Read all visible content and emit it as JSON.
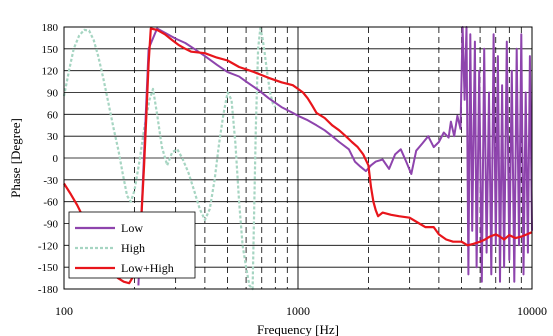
{
  "chart_data": {
    "type": "line",
    "xscale": "log",
    "xlim": [
      100,
      10000
    ],
    "ylim": [
      -180,
      180
    ],
    "xlabel": "Frequency [Hz]",
    "ylabel": "Phase [Degree]",
    "xticks": [
      100,
      1000,
      10000
    ],
    "xtick_labels": [
      "100",
      "1000",
      "10000"
    ],
    "yticks": [
      180,
      150,
      120,
      90,
      60,
      30,
      0,
      -30,
      -60,
      -90,
      -120,
      -150,
      -180
    ],
    "ytick_labels": [
      "180",
      "150",
      "120",
      "90",
      "60",
      "30",
      "0",
      "-30",
      "-60",
      "-90",
      "-120",
      "-150",
      "-180"
    ],
    "grid": true,
    "legend_position": "bottom-left",
    "series": [
      {
        "name": "Low",
        "color": "#8e44ad",
        "points": [
          [
            208,
            -175
          ],
          [
            230,
            150
          ],
          [
            250,
            178
          ],
          [
            270,
            172
          ],
          [
            300,
            164
          ],
          [
            330,
            158
          ],
          [
            360,
            150
          ],
          [
            400,
            140
          ],
          [
            450,
            128
          ],
          [
            500,
            118
          ],
          [
            560,
            112
          ],
          [
            600,
            105
          ],
          [
            680,
            93
          ],
          [
            750,
            82
          ],
          [
            850,
            70
          ],
          [
            950,
            62
          ],
          [
            1000,
            58
          ],
          [
            1100,
            52
          ],
          [
            1200,
            45
          ],
          [
            1300,
            38
          ],
          [
            1400,
            30
          ],
          [
            1500,
            22
          ],
          [
            1650,
            12
          ],
          [
            1750,
            -5
          ],
          [
            1850,
            -12
          ],
          [
            1950,
            -18
          ],
          [
            2050,
            -10
          ],
          [
            2150,
            -5
          ],
          [
            2300,
            -2
          ],
          [
            2450,
            -15
          ],
          [
            2600,
            5
          ],
          [
            2750,
            12
          ],
          [
            2900,
            -5
          ],
          [
            3050,
            -22
          ],
          [
            3200,
            10
          ],
          [
            3400,
            20
          ],
          [
            3600,
            30
          ],
          [
            3800,
            15
          ],
          [
            4000,
            22
          ],
          [
            4200,
            35
          ],
          [
            4400,
            28
          ],
          [
            4500,
            50
          ],
          [
            4650,
            30
          ],
          [
            4800,
            58
          ],
          [
            4950,
            40
          ],
          [
            5050,
            180
          ],
          [
            5150,
            80
          ],
          [
            5250,
            180
          ],
          [
            5350,
            -160
          ],
          [
            5450,
            170
          ],
          [
            5550,
            -100
          ],
          [
            5700,
            160
          ],
          [
            5800,
            -150
          ],
          [
            5950,
            120
          ],
          [
            6100,
            -170
          ],
          [
            6250,
            150
          ],
          [
            6400,
            -130
          ],
          [
            6550,
            90
          ],
          [
            6700,
            -160
          ],
          [
            6850,
            170
          ],
          [
            7000,
            -120
          ],
          [
            7150,
            140
          ],
          [
            7300,
            -170
          ],
          [
            7450,
            100
          ],
          [
            7600,
            -150
          ],
          [
            7800,
            160
          ],
          [
            8000,
            -140
          ],
          [
            8200,
            120
          ],
          [
            8400,
            -170
          ],
          [
            8600,
            150
          ],
          [
            8800,
            -120
          ],
          [
            9000,
            170
          ],
          [
            9200,
            -160
          ],
          [
            9400,
            90
          ],
          [
            9600,
            -130
          ],
          [
            9800,
            140
          ],
          [
            10000,
            -100
          ]
        ]
      },
      {
        "name": "High",
        "color": "#a6d5c2",
        "points": [
          [
            100,
            85
          ],
          [
            105,
            120
          ],
          [
            110,
            150
          ],
          [
            116,
            168
          ],
          [
            122,
            176
          ],
          [
            128,
            175
          ],
          [
            134,
            162
          ],
          [
            140,
            140
          ],
          [
            147,
            110
          ],
          [
            155,
            75
          ],
          [
            163,
            40
          ],
          [
            171,
            10
          ],
          [
            179,
            -25
          ],
          [
            186,
            -52
          ],
          [
            193,
            -60
          ],
          [
            200,
            -45
          ],
          [
            210,
            -5
          ],
          [
            220,
            40
          ],
          [
            232,
            80
          ],
          [
            240,
            95
          ],
          [
            250,
            60
          ],
          [
            262,
            15
          ],
          [
            276,
            -10
          ],
          [
            290,
            8
          ],
          [
            305,
            12
          ],
          [
            320,
            0
          ],
          [
            340,
            -20
          ],
          [
            360,
            -45
          ],
          [
            380,
            -70
          ],
          [
            400,
            -85
          ],
          [
            420,
            -70
          ],
          [
            440,
            -30
          ],
          [
            460,
            20
          ],
          [
            480,
            60
          ],
          [
            500,
            90
          ],
          [
            520,
            80
          ],
          [
            540,
            20
          ],
          [
            560,
            -60
          ],
          [
            580,
            -120
          ],
          [
            600,
            -150
          ],
          [
            620,
            -175
          ],
          [
            640,
            -180
          ],
          [
            660,
            40
          ],
          [
            675,
            150
          ],
          [
            690,
            178
          ],
          [
            705,
            165
          ],
          [
            720,
            145
          ],
          [
            740,
            115
          ],
          [
            760,
            90
          ],
          [
            780,
            75
          ],
          [
            800,
            70
          ]
        ]
      },
      {
        "name": "Low+High",
        "color": "#e8151b",
        "points": [
          [
            100,
            -35
          ],
          [
            107,
            -50
          ],
          [
            114,
            -65
          ],
          [
            121,
            -82
          ],
          [
            130,
            -100
          ],
          [
            140,
            -118
          ],
          [
            150,
            -138
          ],
          [
            160,
            -155
          ],
          [
            170,
            -165
          ],
          [
            180,
            -170
          ],
          [
            190,
            -172
          ],
          [
            200,
            -160
          ],
          [
            210,
            -120
          ],
          [
            215,
            -70
          ],
          [
            220,
            -10
          ],
          [
            225,
            60
          ],
          [
            230,
            130
          ],
          [
            235,
            178
          ],
          [
            250,
            176
          ],
          [
            270,
            170
          ],
          [
            290,
            162
          ],
          [
            310,
            155
          ],
          [
            330,
            150
          ],
          [
            350,
            146
          ],
          [
            400,
            144
          ],
          [
            450,
            138
          ],
          [
            500,
            134
          ],
          [
            560,
            125
          ],
          [
            650,
            118
          ],
          [
            750,
            110
          ],
          [
            850,
            104
          ],
          [
            950,
            100
          ],
          [
            1000,
            95
          ],
          [
            1050,
            90
          ],
          [
            1100,
            82
          ],
          [
            1150,
            72
          ],
          [
            1200,
            62
          ],
          [
            1300,
            55
          ],
          [
            1400,
            45
          ],
          [
            1500,
            38
          ],
          [
            1600,
            30
          ],
          [
            1700,
            22
          ],
          [
            1800,
            15
          ],
          [
            1900,
            5
          ],
          [
            2000,
            -10
          ],
          [
            2050,
            -40
          ],
          [
            2100,
            -60
          ],
          [
            2150,
            -72
          ],
          [
            2200,
            -80
          ],
          [
            2300,
            -75
          ],
          [
            2500,
            -78
          ],
          [
            2700,
            -80
          ],
          [
            3000,
            -82
          ],
          [
            3300,
            -90
          ],
          [
            3500,
            -95
          ],
          [
            3800,
            -95
          ],
          [
            4000,
            -105
          ],
          [
            4300,
            -112
          ],
          [
            4600,
            -115
          ],
          [
            5000,
            -115
          ],
          [
            5300,
            -120
          ],
          [
            5600,
            -118
          ],
          [
            6000,
            -115
          ],
          [
            6300,
            -112
          ],
          [
            6600,
            -108
          ],
          [
            7000,
            -105
          ],
          [
            7300,
            -108
          ],
          [
            7600,
            -112
          ],
          [
            8000,
            -106
          ],
          [
            8500,
            -110
          ],
          [
            9000,
            -108
          ],
          [
            9500,
            -105
          ],
          [
            10000,
            -102
          ]
        ]
      }
    ]
  }
}
